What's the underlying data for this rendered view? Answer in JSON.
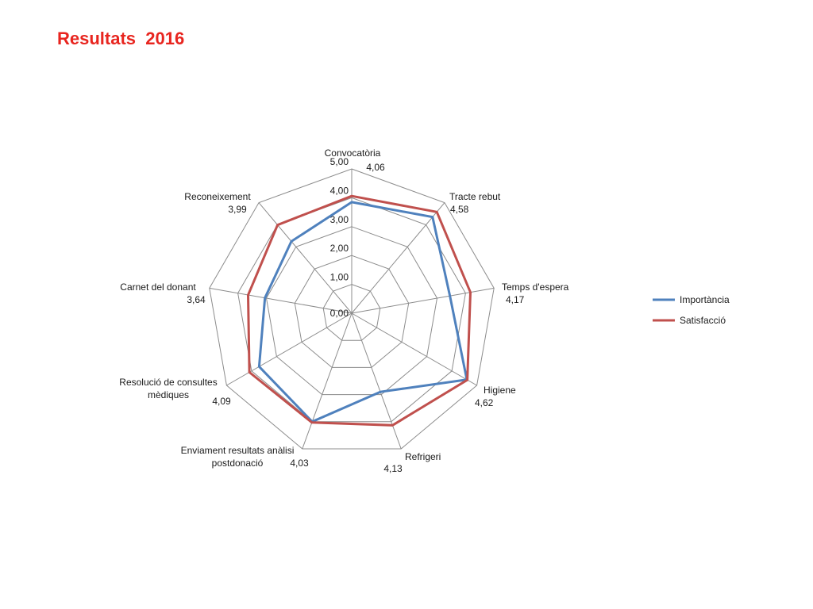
{
  "title": "Resultats  2016",
  "chart_data": {
    "type": "radar",
    "title": "Resultats  2016",
    "categories": [
      "Convocatòria",
      "Tracte rebut",
      "Temps d'espera",
      "Higiene",
      "Refrigeri",
      "Enviament resultats anàlisi postdonació",
      "Resolució de consultes mèdiques",
      "Carnet del donant",
      "Reconeixement"
    ],
    "value_labels": [
      "4,06",
      "4,58",
      "4,17",
      "4,62",
      "4,13",
      "4,03",
      "4,09",
      "3,64",
      "3,99"
    ],
    "axis_ticks": [
      "0,00",
      "1,00",
      "2,00",
      "3,00",
      "4,00",
      "5,00"
    ],
    "rmin": 0,
    "rmax": 5,
    "grid": true,
    "legend_position": "right",
    "series": [
      {
        "name": "Importància",
        "color": "#4f81bd",
        "values": [
          3.85,
          4.35,
          3.45,
          4.6,
          2.9,
          4.0,
          3.7,
          3.05,
          3.25
        ]
      },
      {
        "name": "Satisfacció",
        "color": "#c0504d",
        "values": [
          4.06,
          4.58,
          4.17,
          4.62,
          4.13,
          4.03,
          4.09,
          3.64,
          3.99
        ]
      }
    ]
  }
}
